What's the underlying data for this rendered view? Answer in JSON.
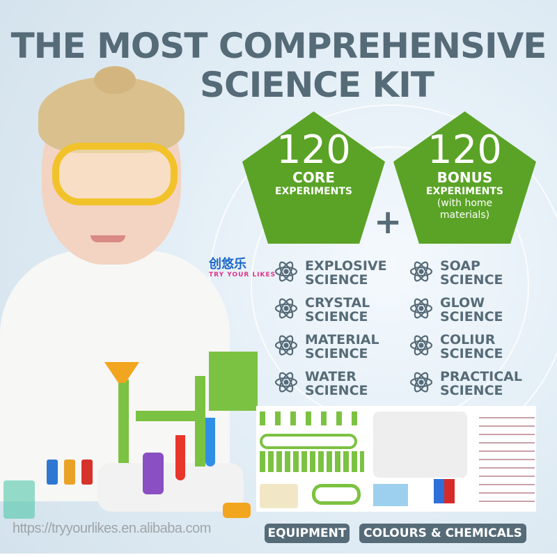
{
  "title": {
    "line1": "THE MOST COMPREHENSIVE",
    "line2": "SCIENCE KIT"
  },
  "core": {
    "number": "120",
    "label": "CORE",
    "sub": "EXPERIMENTS"
  },
  "bonus": {
    "number": "120",
    "label": "BONUS",
    "sub": "EXPERIMENTS",
    "note": "(with home\nmaterials)"
  },
  "plus": "+",
  "categories": [
    "EXPLOSIVE\nSCIENCE",
    "SOAP\nSCIENCE",
    "CRYSTAL\nSCIENCE",
    "GLOW\nSCIENCE",
    "MATERIAL\nSCIENCE",
    "COLIUR\nSCIENCE",
    "WATER\nSCIENCE",
    "PRACTICAL\nSCIENCE"
  ],
  "logo": {
    "cn": "创悠乐",
    "en": "TRY YOUR LIKES"
  },
  "watermark": "https://tryyourlikes.en.alibaba.com",
  "badges": {
    "equipment": "EQUIPMENT",
    "chemicals": "COLOURS &  CHEMICALS"
  },
  "colors": {
    "green": "#5aa326",
    "slate": "#566b78",
    "goggles": "#f2c22a"
  },
  "icon": "atom-icon"
}
